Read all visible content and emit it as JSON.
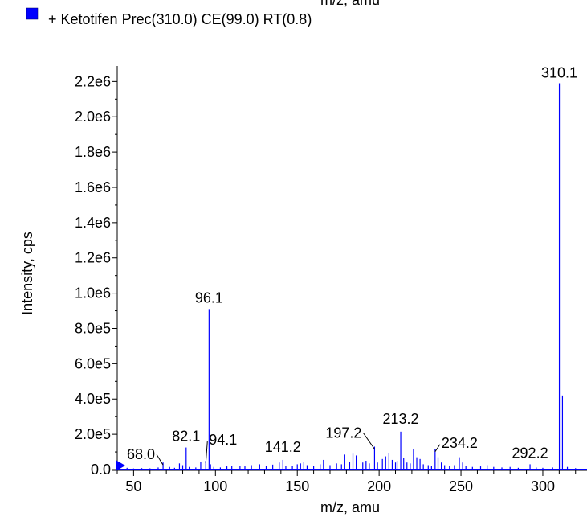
{
  "top_cut_text": "m/z, amu",
  "legend": {
    "swatch_color": "#0000ff",
    "label": "+ Ketotifen Prec(310.0) CE(99.0) RT(0.8)"
  },
  "chart_data": {
    "type": "bar",
    "series_color": "#0000ff",
    "xlabel": "m/z, amu",
    "ylabel": "Intensity, cps",
    "xlim": [
      40,
      327
    ],
    "ylim": [
      0,
      2270000
    ],
    "x_ticks": [
      50,
      100,
      150,
      200,
      250,
      300
    ],
    "y_ticks": [
      {
        "value": 0,
        "label": "0.0"
      },
      {
        "value": 200000,
        "label": "2.0e5"
      },
      {
        "value": 400000,
        "label": "4.0e5"
      },
      {
        "value": 600000,
        "label": "6.0e5"
      },
      {
        "value": 800000,
        "label": "8.0e5"
      },
      {
        "value": 1000000,
        "label": "1.0e6"
      },
      {
        "value": 1200000,
        "label": "1.2e6"
      },
      {
        "value": 1400000,
        "label": "1.4e6"
      },
      {
        "value": 1600000,
        "label": "1.6e6"
      },
      {
        "value": 1800000,
        "label": "1.8e6"
      },
      {
        "value": 2000000,
        "label": "2.0e6"
      },
      {
        "value": 2200000,
        "label": "2.2e6"
      }
    ],
    "peaks": [
      {
        "x": 46,
        "y": 10000
      },
      {
        "x": 50,
        "y": 6000
      },
      {
        "x": 55,
        "y": 8000
      },
      {
        "x": 60,
        "y": 7000
      },
      {
        "x": 65,
        "y": 12000
      },
      {
        "x": 68,
        "y": 40000
      },
      {
        "x": 72,
        "y": 15000
      },
      {
        "x": 75,
        "y": 10000
      },
      {
        "x": 78,
        "y": 35000
      },
      {
        "x": 80,
        "y": 25000
      },
      {
        "x": 82.1,
        "y": 125000
      },
      {
        "x": 84,
        "y": 15000
      },
      {
        "x": 88,
        "y": 12000
      },
      {
        "x": 91,
        "y": 45000
      },
      {
        "x": 94.1,
        "y": 50000
      },
      {
        "x": 96.1,
        "y": 910000
      },
      {
        "x": 97,
        "y": 30000
      },
      {
        "x": 99,
        "y": 15000
      },
      {
        "x": 103,
        "y": 12000
      },
      {
        "x": 107,
        "y": 18000
      },
      {
        "x": 110,
        "y": 22000
      },
      {
        "x": 115,
        "y": 20000
      },
      {
        "x": 118,
        "y": 18000
      },
      {
        "x": 122,
        "y": 25000
      },
      {
        "x": 127,
        "y": 30000
      },
      {
        "x": 131,
        "y": 20000
      },
      {
        "x": 135,
        "y": 28000
      },
      {
        "x": 139,
        "y": 40000
      },
      {
        "x": 141.2,
        "y": 55000
      },
      {
        "x": 143,
        "y": 20000
      },
      {
        "x": 147,
        "y": 22000
      },
      {
        "x": 150,
        "y": 30000
      },
      {
        "x": 152,
        "y": 35000
      },
      {
        "x": 154,
        "y": 45000
      },
      {
        "x": 156,
        "y": 25000
      },
      {
        "x": 160,
        "y": 20000
      },
      {
        "x": 164,
        "y": 30000
      },
      {
        "x": 166,
        "y": 55000
      },
      {
        "x": 170,
        "y": 25000
      },
      {
        "x": 174,
        "y": 35000
      },
      {
        "x": 177,
        "y": 30000
      },
      {
        "x": 179,
        "y": 85000
      },
      {
        "x": 182,
        "y": 45000
      },
      {
        "x": 184,
        "y": 90000
      },
      {
        "x": 186,
        "y": 80000
      },
      {
        "x": 190,
        "y": 40000
      },
      {
        "x": 192,
        "y": 50000
      },
      {
        "x": 194,
        "y": 35000
      },
      {
        "x": 197.2,
        "y": 130000
      },
      {
        "x": 199,
        "y": 40000
      },
      {
        "x": 202,
        "y": 60000
      },
      {
        "x": 204,
        "y": 75000
      },
      {
        "x": 206,
        "y": 95000
      },
      {
        "x": 208,
        "y": 55000
      },
      {
        "x": 210,
        "y": 40000
      },
      {
        "x": 211,
        "y": 50000
      },
      {
        "x": 213.2,
        "y": 215000
      },
      {
        "x": 215,
        "y": 65000
      },
      {
        "x": 217,
        "y": 40000
      },
      {
        "x": 219,
        "y": 35000
      },
      {
        "x": 221,
        "y": 115000
      },
      {
        "x": 223,
        "y": 70000
      },
      {
        "x": 225,
        "y": 60000
      },
      {
        "x": 227,
        "y": 30000
      },
      {
        "x": 230,
        "y": 25000
      },
      {
        "x": 232,
        "y": 20000
      },
      {
        "x": 234.2,
        "y": 115000
      },
      {
        "x": 236,
        "y": 70000
      },
      {
        "x": 238,
        "y": 40000
      },
      {
        "x": 240,
        "y": 25000
      },
      {
        "x": 243,
        "y": 20000
      },
      {
        "x": 246,
        "y": 25000
      },
      {
        "x": 249,
        "y": 70000
      },
      {
        "x": 251,
        "y": 40000
      },
      {
        "x": 253,
        "y": 20000
      },
      {
        "x": 257,
        "y": 15000
      },
      {
        "x": 262,
        "y": 18000
      },
      {
        "x": 266,
        "y": 25000
      },
      {
        "x": 270,
        "y": 15000
      },
      {
        "x": 275,
        "y": 12000
      },
      {
        "x": 280,
        "y": 15000
      },
      {
        "x": 285,
        "y": 10000
      },
      {
        "x": 292.2,
        "y": 30000
      },
      {
        "x": 296,
        "y": 12000
      },
      {
        "x": 300,
        "y": 10000
      },
      {
        "x": 306,
        "y": 12000
      },
      {
        "x": 310.1,
        "y": 2190000
      },
      {
        "x": 312,
        "y": 420000
      },
      {
        "x": 315,
        "y": 15000
      },
      {
        "x": 320,
        "y": 8000
      }
    ],
    "annotations": [
      {
        "text": "310.1",
        "x": 310.1,
        "y": 2190000
      },
      {
        "text": "96.1",
        "x": 96.1,
        "y": 910000
      },
      {
        "text": "213.2",
        "x": 213.2,
        "y": 215000
      },
      {
        "text": "197.2",
        "x": 197.2,
        "y": 130000
      },
      {
        "text": "234.2",
        "x": 234.2,
        "y": 115000
      },
      {
        "text": "82.1",
        "x": 82.1,
        "y": 125000
      },
      {
        "text": "94.1",
        "x": 94.1,
        "y": 50000
      },
      {
        "text": "141.2",
        "x": 141.2,
        "y": 55000
      },
      {
        "text": "292.2",
        "x": 292.2,
        "y": 30000
      },
      {
        "text": "68.0",
        "x": 68.0,
        "y": 40000
      }
    ]
  }
}
